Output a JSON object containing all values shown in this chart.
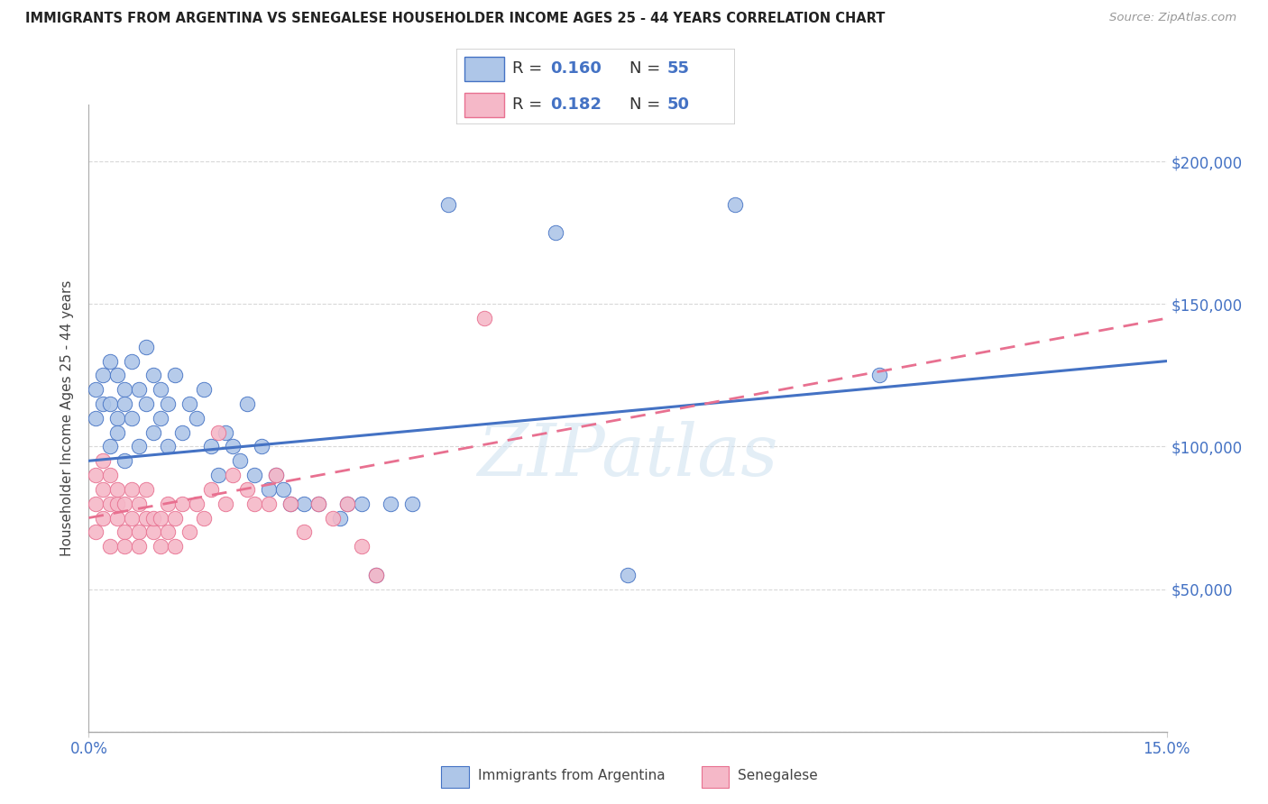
{
  "title": "IMMIGRANTS FROM ARGENTINA VS SENEGALESE HOUSEHOLDER INCOME AGES 25 - 44 YEARS CORRELATION CHART",
  "source": "Source: ZipAtlas.com",
  "ylabel": "Householder Income Ages 25 - 44 years",
  "argentina_R": "0.160",
  "argentina_N": "55",
  "senegalese_R": "0.182",
  "senegalese_N": "50",
  "argentina_color": "#aec6e8",
  "senegalese_color": "#f5b8c8",
  "argentina_line_color": "#4472c4",
  "senegalese_line_color": "#e87090",
  "watermark": "ZIPatlas",
  "xlim": [
    0.0,
    0.15
  ],
  "ylim": [
    0,
    220000
  ],
  "yticks": [
    0,
    50000,
    100000,
    150000,
    200000
  ],
  "ytick_labels": [
    "",
    "$50,000",
    "$100,000",
    "$150,000",
    "$200,000"
  ],
  "argentina_line_x0": 0.0,
  "argentina_line_y0": 95000,
  "argentina_line_x1": 0.15,
  "argentina_line_y1": 130000,
  "senegalese_line_x0": 0.0,
  "senegalese_line_y0": 75000,
  "senegalese_line_x1": 0.15,
  "senegalese_line_y1": 145000,
  "argentina_scatter_x": [
    0.001,
    0.001,
    0.002,
    0.002,
    0.003,
    0.003,
    0.003,
    0.004,
    0.004,
    0.004,
    0.005,
    0.005,
    0.005,
    0.006,
    0.006,
    0.007,
    0.007,
    0.008,
    0.008,
    0.009,
    0.009,
    0.01,
    0.01,
    0.011,
    0.011,
    0.012,
    0.013,
    0.014,
    0.015,
    0.016,
    0.017,
    0.018,
    0.019,
    0.02,
    0.021,
    0.022,
    0.023,
    0.024,
    0.025,
    0.026,
    0.027,
    0.028,
    0.03,
    0.032,
    0.035,
    0.036,
    0.038,
    0.04,
    0.042,
    0.045,
    0.05,
    0.065,
    0.075,
    0.09,
    0.11
  ],
  "argentina_scatter_y": [
    120000,
    110000,
    125000,
    115000,
    130000,
    100000,
    115000,
    110000,
    125000,
    105000,
    120000,
    95000,
    115000,
    110000,
    130000,
    120000,
    100000,
    115000,
    135000,
    105000,
    125000,
    110000,
    120000,
    100000,
    115000,
    125000,
    105000,
    115000,
    110000,
    120000,
    100000,
    90000,
    105000,
    100000,
    95000,
    115000,
    90000,
    100000,
    85000,
    90000,
    85000,
    80000,
    80000,
    80000,
    75000,
    80000,
    80000,
    55000,
    80000,
    80000,
    185000,
    175000,
    55000,
    185000,
    125000
  ],
  "senegalese_scatter_x": [
    0.001,
    0.001,
    0.001,
    0.002,
    0.002,
    0.002,
    0.003,
    0.003,
    0.003,
    0.004,
    0.004,
    0.004,
    0.005,
    0.005,
    0.005,
    0.006,
    0.006,
    0.007,
    0.007,
    0.007,
    0.008,
    0.008,
    0.009,
    0.009,
    0.01,
    0.01,
    0.011,
    0.011,
    0.012,
    0.012,
    0.013,
    0.014,
    0.015,
    0.016,
    0.017,
    0.018,
    0.019,
    0.02,
    0.022,
    0.023,
    0.025,
    0.026,
    0.028,
    0.03,
    0.032,
    0.034,
    0.036,
    0.038,
    0.04,
    0.055
  ],
  "senegalese_scatter_y": [
    90000,
    80000,
    70000,
    85000,
    95000,
    75000,
    80000,
    90000,
    65000,
    80000,
    75000,
    85000,
    70000,
    80000,
    65000,
    75000,
    85000,
    70000,
    80000,
    65000,
    75000,
    85000,
    70000,
    75000,
    65000,
    75000,
    70000,
    80000,
    75000,
    65000,
    80000,
    70000,
    80000,
    75000,
    85000,
    105000,
    80000,
    90000,
    85000,
    80000,
    80000,
    90000,
    80000,
    70000,
    80000,
    75000,
    80000,
    65000,
    55000,
    145000
  ]
}
